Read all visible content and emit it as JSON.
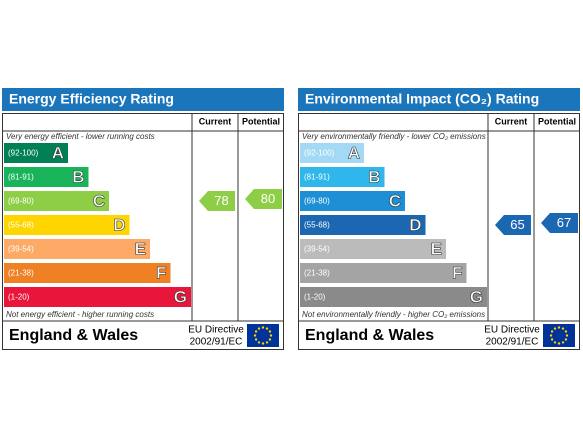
{
  "panels": [
    {
      "title": "Energy Efficiency Rating",
      "headers": [
        "Current",
        "Potential"
      ],
      "top_note": "Very energy efficient - lower running costs",
      "bottom_note": "Not energy efficient - higher running costs",
      "bands": [
        {
          "range": "(92-100)",
          "letter": "A",
          "color": "#008054"
        },
        {
          "range": "(81-91)",
          "letter": "B",
          "color": "#19b459"
        },
        {
          "range": "(69-80)",
          "letter": "C",
          "color": "#8dce46"
        },
        {
          "range": "(55-68)",
          "letter": "D",
          "color": "#ffd500"
        },
        {
          "range": "(39-54)",
          "letter": "E",
          "color": "#fcaa65"
        },
        {
          "range": "(21-38)",
          "letter": "F",
          "color": "#ef8023"
        },
        {
          "range": "(1-20)",
          "letter": "G",
          "color": "#e9153b"
        }
      ],
      "current": 78,
      "potential": 80,
      "region": "England & Wales",
      "directive": [
        "EU Directive",
        "2002/91/EC"
      ]
    },
    {
      "title": "Environmental Impact (CO₂) Rating",
      "headers": [
        "Current",
        "Potential"
      ],
      "top_note": "Very environmentally friendly - lower CO₂ emissions",
      "bottom_note": "Not environmentally friendly - higher CO₂ emissions",
      "bands": [
        {
          "range": "(92-100)",
          "letter": "A",
          "color": "#a3d9f5"
        },
        {
          "range": "(81-91)",
          "letter": "B",
          "color": "#2fb6ea"
        },
        {
          "range": "(69-80)",
          "letter": "C",
          "color": "#1d8fd4"
        },
        {
          "range": "(55-68)",
          "letter": "D",
          "color": "#1c67b2"
        },
        {
          "range": "(39-54)",
          "letter": "E",
          "color": "#bbbbbb"
        },
        {
          "range": "(21-38)",
          "letter": "F",
          "color": "#a4a4a4"
        },
        {
          "range": "(1-20)",
          "letter": "G",
          "color": "#8a8a8a"
        }
      ],
      "current": 65,
      "potential": 67,
      "region": "England & Wales",
      "directive": [
        "EU Directive",
        "2002/91/EC"
      ]
    }
  ]
}
